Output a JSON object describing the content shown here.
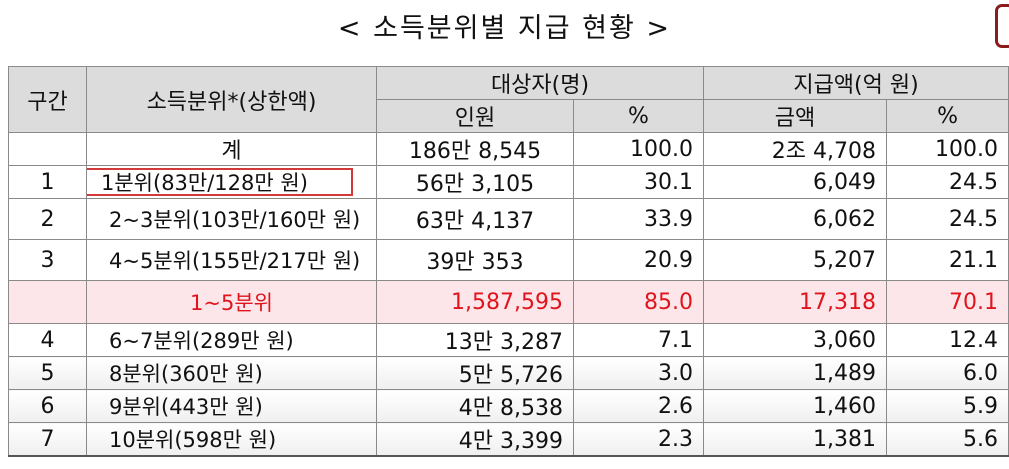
{
  "title": "< 소득분위별 지급 현황 >",
  "colors": {
    "header_bg": "#dcdcdc",
    "highlight_bg": "#fde6ea",
    "highlight_text": "#e0141c",
    "box_border": "#d23a3a"
  },
  "header": {
    "gu": "구간",
    "quintile": "소득분위*(상한액)",
    "target": "대상자(명)",
    "amount": "지급액(억 원)",
    "people": "인원",
    "pct": "%",
    "money": "금액",
    "pct2": "%"
  },
  "total": {
    "label": "계",
    "people": "186만 8,545",
    "pct": "100.0",
    "amount": "2조 4,708",
    "pct2": "100.0"
  },
  "rows": [
    {
      "gu": "1",
      "quintile": "1분위(83만/128만 원)",
      "people": "56만 3,105",
      "pct": "30.1",
      "amount": "6,049",
      "pct2": "24.5"
    },
    {
      "gu": "2",
      "quintile": "2~3분위(103만/160만 원)",
      "people": "63만 4,137",
      "pct": "33.9",
      "amount": "6,062",
      "pct2": "24.5"
    },
    {
      "gu": "3",
      "quintile": "4~5분위(155만/217만 원)",
      "people": "39만 353",
      "pct": "20.9",
      "amount": "5,207",
      "pct2": "21.1"
    },
    {
      "gu": "4",
      "quintile": "6~7분위(289만 원)",
      "people": "13만 3,287",
      "pct": "7.1",
      "amount": "3,060",
      "pct2": "12.4"
    },
    {
      "gu": "5",
      "quintile": "8분위(360만 원)",
      "people": "5만 5,726",
      "pct": "3.0",
      "amount": "1,489",
      "pct2": "6.0"
    },
    {
      "gu": "6",
      "quintile": "9분위(443만 원)",
      "people": "4만 8,538",
      "pct": "2.6",
      "amount": "1,460",
      "pct2": "5.9"
    },
    {
      "gu": "7",
      "quintile": "10분위(598만 원)",
      "people": "4만 3,399",
      "pct": "2.3",
      "amount": "1,381",
      "pct2": "5.6"
    }
  ],
  "subtotal": {
    "gu": "",
    "quintile": "1~5분위",
    "people": "1,587,595",
    "pct": "85.0",
    "amount": "17,318",
    "pct2": "70.1"
  }
}
